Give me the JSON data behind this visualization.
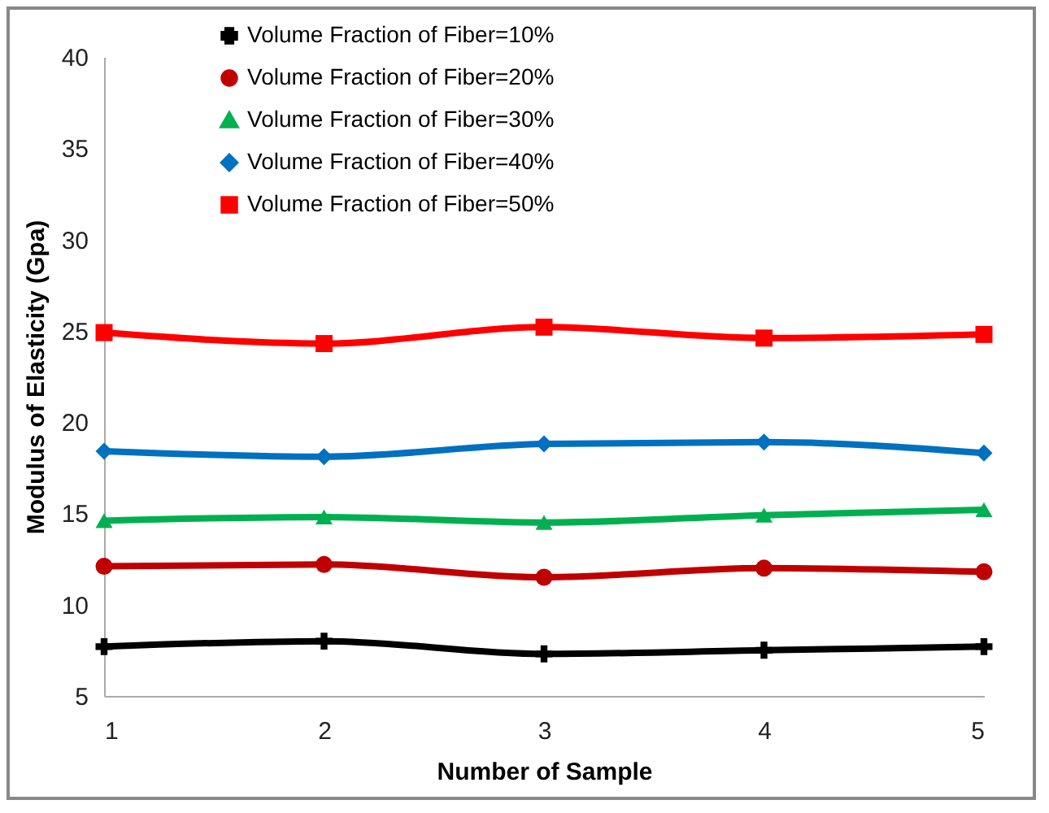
{
  "chart_data": {
    "type": "line",
    "xlabel": "Number of Sample",
    "ylabel": "Modulus of Elasticity (Gpa)",
    "x": [
      1,
      2,
      3,
      4,
      5
    ],
    "xlim": [
      1,
      5
    ],
    "xticks": [
      1,
      2,
      3,
      4,
      5
    ],
    "ylim": [
      5,
      40
    ],
    "yticks": [
      5,
      10,
      15,
      20,
      25,
      30,
      35,
      40
    ],
    "grid": false,
    "legend": "top left",
    "series": [
      {
        "name": "Volume Fraction of Fiber=10%",
        "color": "#000000",
        "marker": "cross",
        "values": [
          7.7,
          8.0,
          7.3,
          7.5,
          7.7
        ]
      },
      {
        "name": "Volume Fraction of Fiber=20%",
        "color": "#c00000",
        "marker": "circle",
        "values": [
          12.1,
          12.2,
          11.5,
          12.0,
          11.8
        ]
      },
      {
        "name": "Volume Fraction of Fiber=30%",
        "color": "#00b050",
        "marker": "triangle",
        "values": [
          14.6,
          14.8,
          14.5,
          14.9,
          15.2
        ]
      },
      {
        "name": "Volume Fraction of Fiber=40%",
        "color": "#0070c0",
        "marker": "diamond",
        "values": [
          18.4,
          18.1,
          18.8,
          18.9,
          18.3
        ]
      },
      {
        "name": "Volume Fraction of Fiber=50%",
        "color": "#ff0000",
        "marker": "square",
        "values": [
          24.9,
          24.3,
          25.2,
          24.6,
          24.8
        ]
      }
    ]
  }
}
